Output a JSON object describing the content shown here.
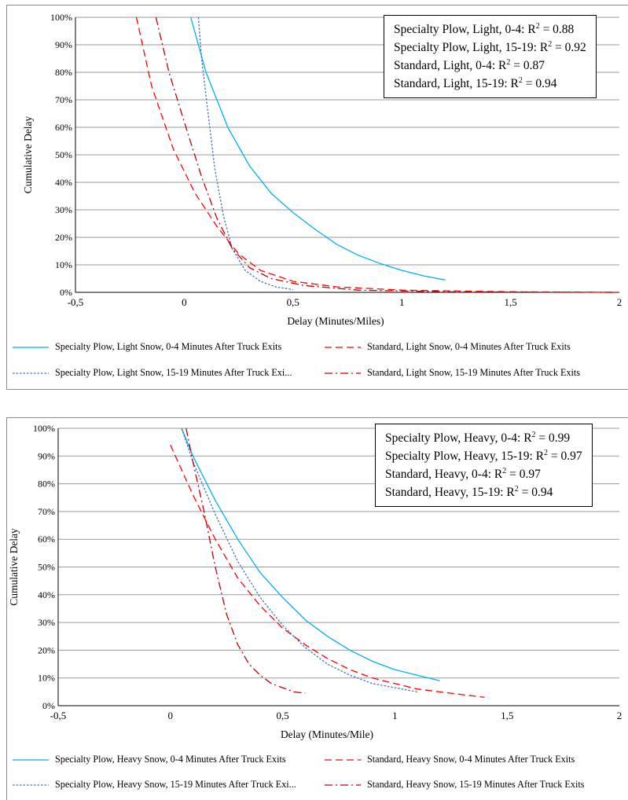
{
  "chart_data": [
    {
      "type": "line",
      "xlabel": "Delay (Minutes/Miles)",
      "ylabel": "Cumulative Delay",
      "xlim": [
        -0.5,
        2
      ],
      "ylim": [
        0,
        1
      ],
      "x_ticks": [
        "-0,5",
        "0",
        "0,5",
        "1",
        "1,5",
        "2"
      ],
      "y_ticks": [
        "0%",
        "10%",
        "20%",
        "30%",
        "40%",
        "50%",
        "60%",
        "70%",
        "80%",
        "90%",
        "100%"
      ],
      "grid": "horizontal",
      "legend_position": "bottom",
      "r2_box": {
        "position": "top-right",
        "lines": [
          {
            "text": "Specialty Plow, Light, 0-4: R",
            "sup": "2",
            "value": " = 0.88"
          },
          {
            "text": "Specialty Plow, Light, 15-19: R",
            "sup": "2",
            "value": " = 0.92"
          },
          {
            "text": "Standard, Light, 0-4: R",
            "sup": "2",
            "value": " = 0.87"
          },
          {
            "text": "Standard, Light, 15-19: R",
            "sup": "2",
            "value": " = 0.94"
          }
        ]
      },
      "series": [
        {
          "name": "Specialty Plow, Light Snow, 0-4 Minutes After Truck Exits",
          "color": "#00b0f0",
          "dash": "solid",
          "points": [
            [
              0.03,
              1.0
            ],
            [
              0.1,
              0.8
            ],
            [
              0.2,
              0.6
            ],
            [
              0.3,
              0.46
            ],
            [
              0.4,
              0.36
            ],
            [
              0.5,
              0.29
            ],
            [
              0.6,
              0.23
            ],
            [
              0.7,
              0.175
            ],
            [
              0.8,
              0.135
            ],
            [
              0.9,
              0.105
            ],
            [
              1.0,
              0.08
            ],
            [
              1.1,
              0.06
            ],
            [
              1.2,
              0.045
            ]
          ]
        },
        {
          "name": "Standard, Light Snow, 0-4 Minutes After Truck Exits",
          "color": "#ff0000",
          "dash": "dashed",
          "points": [
            [
              -0.22,
              1.0
            ],
            [
              -0.15,
              0.75
            ],
            [
              -0.05,
              0.52
            ],
            [
              0.05,
              0.36
            ],
            [
              0.15,
              0.24
            ],
            [
              0.25,
              0.14
            ],
            [
              0.35,
              0.08
            ],
            [
              0.5,
              0.04
            ],
            [
              0.7,
              0.02
            ],
            [
              1.0,
              0.008
            ],
            [
              1.5,
              0.002
            ],
            [
              2.0,
              0.0
            ]
          ]
        },
        {
          "name": "Specialty Plow, Light Snow, 15-19 Minutes After Truck Exi...",
          "color": "#4472c4",
          "dash": "dotted",
          "points": [
            [
              0.065,
              1.0
            ],
            [
              0.08,
              0.85
            ],
            [
              0.11,
              0.65
            ],
            [
              0.14,
              0.45
            ],
            [
              0.18,
              0.28
            ],
            [
              0.22,
              0.16
            ],
            [
              0.28,
              0.08
            ],
            [
              0.35,
              0.04
            ],
            [
              0.42,
              0.02
            ],
            [
              0.5,
              0.01
            ]
          ]
        },
        {
          "name": "Standard, Light Snow, 15-19 Minutes After Truck Exits",
          "color": "#c00000",
          "dash": "dashdot",
          "points": [
            [
              -0.13,
              1.0
            ],
            [
              -0.07,
              0.8
            ],
            [
              0.0,
              0.62
            ],
            [
              0.08,
              0.42
            ],
            [
              0.15,
              0.27
            ],
            [
              0.22,
              0.16
            ],
            [
              0.3,
              0.09
            ],
            [
              0.4,
              0.05
            ],
            [
              0.55,
              0.025
            ],
            [
              0.8,
              0.008
            ],
            [
              1.2,
              0.002
            ],
            [
              2.0,
              0.0
            ]
          ]
        }
      ]
    },
    {
      "type": "line",
      "xlabel": "Delay (Minutes/Mile)",
      "ylabel": "Cumulative Delay",
      "xlim": [
        -0.5,
        2
      ],
      "ylim": [
        0,
        1
      ],
      "x_ticks": [
        "-0,5",
        "0",
        "0,5",
        "1",
        "1,5",
        "2"
      ],
      "y_ticks": [
        "0%",
        "10%",
        "20%",
        "30%",
        "40%",
        "50%",
        "60%",
        "70%",
        "80%",
        "90%",
        "100%"
      ],
      "grid": "horizontal",
      "legend_position": "bottom",
      "r2_box": {
        "position": "top-right",
        "lines": [
          {
            "text": "Specialty Plow, Heavy, 0-4: R",
            "sup": "2",
            "value": " = 0.99"
          },
          {
            "text": "Specialty Plow, Heavy, 15-19: R",
            "sup": "2",
            "value": " = 0.97"
          },
          {
            "text": "Standard, Heavy, 0-4: R",
            "sup": "2",
            "value": " = 0.97"
          },
          {
            "text": "Standard, Heavy, 15-19: R",
            "sup": "2",
            "value": " = 0.94"
          }
        ]
      },
      "series": [
        {
          "name": "Specialty Plow, Heavy Snow, 0-4 Minutes After Truck Exits",
          "color": "#00b0f0",
          "dash": "solid",
          "points": [
            [
              0.05,
              1.0
            ],
            [
              0.1,
              0.9
            ],
            [
              0.2,
              0.74
            ],
            [
              0.3,
              0.6
            ],
            [
              0.4,
              0.48
            ],
            [
              0.5,
              0.39
            ],
            [
              0.6,
              0.31
            ],
            [
              0.7,
              0.25
            ],
            [
              0.8,
              0.2
            ],
            [
              0.9,
              0.16
            ],
            [
              1.0,
              0.13
            ],
            [
              1.1,
              0.11
            ],
            [
              1.2,
              0.09
            ]
          ]
        },
        {
          "name": "Standard, Heavy Snow, 0-4 Minutes After Truck Exits",
          "color": "#ff0000",
          "dash": "dashed",
          "points": [
            [
              0.0,
              0.94
            ],
            [
              0.1,
              0.76
            ],
            [
              0.2,
              0.6
            ],
            [
              0.3,
              0.46
            ],
            [
              0.4,
              0.36
            ],
            [
              0.5,
              0.28
            ],
            [
              0.6,
              0.22
            ],
            [
              0.7,
              0.17
            ],
            [
              0.8,
              0.13
            ],
            [
              0.9,
              0.1
            ],
            [
              1.0,
              0.08
            ],
            [
              1.1,
              0.06
            ],
            [
              1.2,
              0.05
            ],
            [
              1.3,
              0.04
            ],
            [
              1.4,
              0.03
            ]
          ]
        },
        {
          "name": "Specialty Plow, Heavy Snow, 15-19 Minutes After Truck Exi...",
          "color": "#4472c4",
          "dash": "dotted",
          "points": [
            [
              0.05,
              1.0
            ],
            [
              0.1,
              0.88
            ],
            [
              0.2,
              0.69
            ],
            [
              0.3,
              0.52
            ],
            [
              0.4,
              0.39
            ],
            [
              0.5,
              0.29
            ],
            [
              0.6,
              0.21
            ],
            [
              0.7,
              0.15
            ],
            [
              0.8,
              0.11
            ],
            [
              0.9,
              0.08
            ],
            [
              1.0,
              0.065
            ],
            [
              1.1,
              0.05
            ]
          ]
        },
        {
          "name": "Standard, Heavy Snow, 15-19 Minutes After Truck Exits",
          "color": "#c00000",
          "dash": "dashdot",
          "points": [
            [
              0.07,
              1.0
            ],
            [
              0.1,
              0.88
            ],
            [
              0.15,
              0.7
            ],
            [
              0.2,
              0.5
            ],
            [
              0.25,
              0.33
            ],
            [
              0.3,
              0.22
            ],
            [
              0.35,
              0.15
            ],
            [
              0.4,
              0.11
            ],
            [
              0.45,
              0.08
            ],
            [
              0.5,
              0.065
            ],
            [
              0.55,
              0.05
            ],
            [
              0.6,
              0.045
            ]
          ]
        }
      ]
    }
  ]
}
